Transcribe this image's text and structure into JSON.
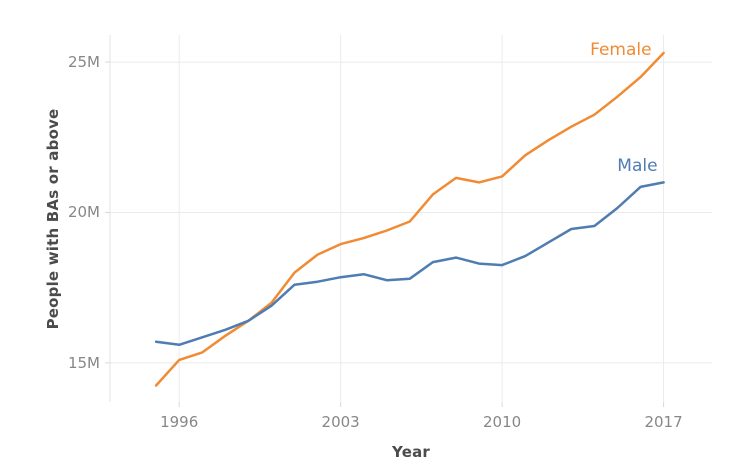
{
  "chart": {
    "colors": {
      "female_line": "#f18b33",
      "male_line": "#4f7cb3",
      "gridline": "#ebebeb",
      "axis_rule": "#e3e3e3",
      "tick_mark": "#d9d9d9",
      "tick_label_text": "#878787",
      "axis_title_text": "#4b4b4b",
      "background": "#ffffff"
    }
  },
  "chart_data": {
    "type": "line",
    "title": "",
    "xlabel": "Year",
    "ylabel": "People with BAs or above",
    "x": [
      1995,
      1996,
      1997,
      1998,
      1999,
      2000,
      2001,
      2002,
      2003,
      2004,
      2005,
      2006,
      2007,
      2008,
      2009,
      2010,
      2011,
      2012,
      2013,
      2014,
      2015,
      2016,
      2017
    ],
    "series": [
      {
        "name": "Female",
        "color": "#f18b33",
        "values": [
          14.25,
          15.1,
          15.35,
          15.9,
          16.4,
          17.0,
          18.0,
          18.6,
          18.95,
          19.15,
          19.4,
          19.7,
          20.6,
          21.15,
          21.0,
          21.2,
          21.9,
          22.4,
          22.85,
          23.25,
          23.85,
          24.5,
          25.3
        ]
      },
      {
        "name": "Male",
        "color": "#4f7cb3",
        "values": [
          15.7,
          15.6,
          15.85,
          16.1,
          16.4,
          16.9,
          17.6,
          17.7,
          17.85,
          17.95,
          17.75,
          17.8,
          18.35,
          18.5,
          18.3,
          18.25,
          18.55,
          19.0,
          19.45,
          19.55,
          20.15,
          20.85,
          21.0
        ]
      }
    ],
    "xlim": [
      1993.0,
      2019.1
    ],
    "ylim": [
      13.7,
      25.9
    ],
    "x_ticks": [
      {
        "value": 1996,
        "label": "1996"
      },
      {
        "value": 2003,
        "label": "2003"
      },
      {
        "value": 2010,
        "label": "2010"
      },
      {
        "value": 2017,
        "label": "2017"
      }
    ],
    "y_ticks": [
      {
        "value": 15,
        "label": "15M"
      },
      {
        "value": 20,
        "label": "20M"
      },
      {
        "value": 25,
        "label": "25M"
      }
    ],
    "grid": true,
    "legend": "inline-series-labels"
  }
}
